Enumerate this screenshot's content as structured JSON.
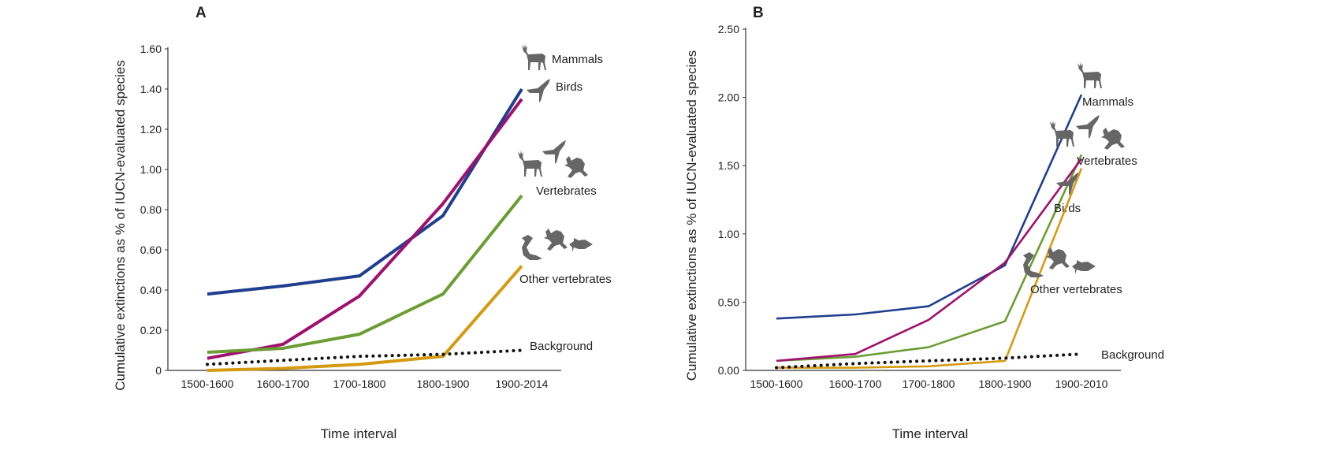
{
  "chart_data": [
    {
      "type": "line",
      "panel_label": "A",
      "xlabel": "Time interval",
      "ylabel": "Cumulative extinctions as % of IUCN-evaluated species",
      "categories": [
        "1500-1600",
        "1600-1700",
        "1700-1800",
        "1800-1900",
        "1900-2014"
      ],
      "ylim": [
        0,
        1.6
      ],
      "yticks": [
        "0",
        "0.20",
        "0.40",
        "0.60",
        "0.80",
        "1.00",
        "1.20",
        "1.40",
        "1.60"
      ],
      "grid": false,
      "series": [
        {
          "name": "Mammals",
          "color": "#1f3f8f",
          "style": "solid",
          "icons": [
            "deer-icon"
          ],
          "values": [
            0.38,
            0.42,
            0.47,
            0.77,
            1.4
          ]
        },
        {
          "name": "Birds",
          "color": "#a0106e",
          "style": "solid",
          "icons": [
            "bird-icon"
          ],
          "values": [
            0.06,
            0.13,
            0.37,
            0.83,
            1.35
          ]
        },
        {
          "name": "Vertebrates",
          "color": "#6a9e34",
          "style": "solid",
          "icons": [
            "deer-icon",
            "bird-icon",
            "frog-icon"
          ],
          "values": [
            0.09,
            0.11,
            0.18,
            0.38,
            0.87
          ]
        },
        {
          "name": "Other vertebrates",
          "color": "#d49b12",
          "style": "solid",
          "icons": [
            "snake-icon",
            "frog-icon",
            "fish-icon"
          ],
          "values": [
            0.0,
            0.01,
            0.03,
            0.07,
            0.52
          ]
        },
        {
          "name": "Background",
          "color": "#111111",
          "style": "dotted",
          "icons": [],
          "values": [
            0.03,
            0.05,
            0.07,
            0.08,
            0.1
          ]
        }
      ]
    },
    {
      "type": "line",
      "panel_label": "B",
      "xlabel": "Time interval",
      "ylabel": "Cumulative extinctions as % of IUCN-evaluated species",
      "categories": [
        "1500-1600",
        "1600-1700",
        "1700-1800",
        "1800-1900",
        "1900-2010"
      ],
      "ylim": [
        0,
        2.5
      ],
      "yticks": [
        "0.00",
        "0.50",
        "1.00",
        "1.50",
        "2.00",
        "2.50"
      ],
      "grid": false,
      "series": [
        {
          "name": "Mammals",
          "color": "#1f3f8f",
          "style": "solid",
          "icons": [
            "deer-icon"
          ],
          "values": [
            0.38,
            0.41,
            0.47,
            0.77,
            2.02
          ]
        },
        {
          "name": "Vertebrates",
          "color": "#6a9e34",
          "style": "solid",
          "icons": [
            "deer-icon",
            "bird-icon",
            "frog-icon"
          ],
          "values": [
            0.07,
            0.1,
            0.17,
            0.36,
            1.58
          ]
        },
        {
          "name": "Birds",
          "color": "#a0106e",
          "style": "solid",
          "icons": [
            "bird-icon"
          ],
          "values": [
            0.07,
            0.12,
            0.37,
            0.79,
            1.55
          ]
        },
        {
          "name": "Other vertebrates",
          "color": "#d49b12",
          "style": "solid",
          "icons": [
            "snake-icon",
            "frog-icon",
            "fish-icon"
          ],
          "values": [
            0.02,
            0.02,
            0.03,
            0.07,
            1.48
          ]
        },
        {
          "name": "Background",
          "color": "#111111",
          "style": "dotted",
          "icons": [],
          "values": [
            0.02,
            0.05,
            0.07,
            0.09,
            0.12
          ]
        }
      ]
    }
  ]
}
